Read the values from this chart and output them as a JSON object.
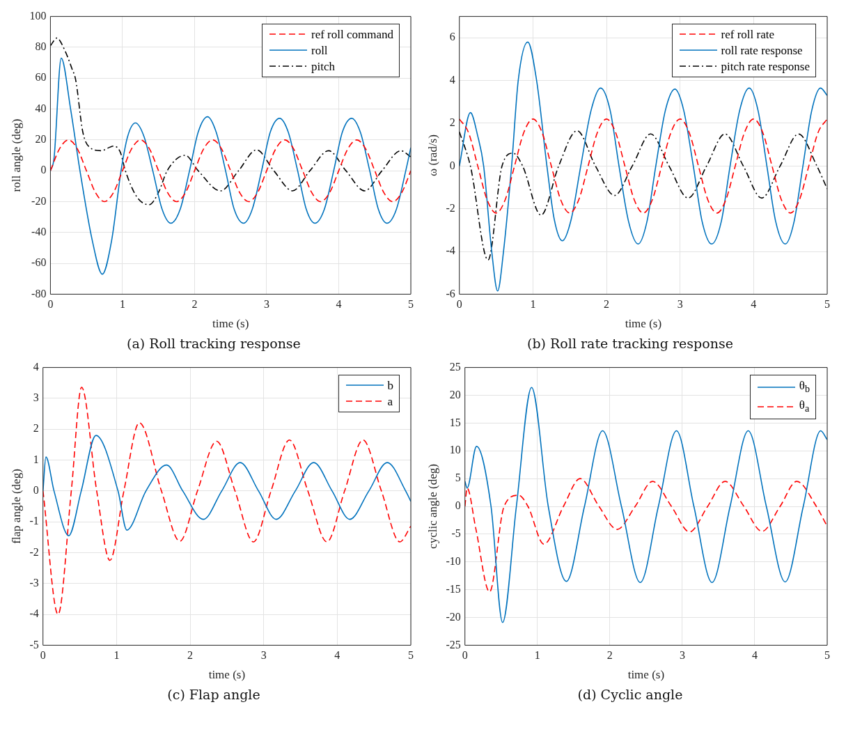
{
  "chart_data": [
    {
      "type": "line",
      "title": "(a) Roll tracking response",
      "xlabel": "time (s)",
      "ylabel": "roll angle (deg)",
      "xlim": [
        0,
        5
      ],
      "xticks": [
        0,
        1,
        2,
        3,
        4,
        5
      ],
      "ylim": [
        -80,
        100
      ],
      "yticks": [
        -80,
        -60,
        -40,
        -20,
        0,
        20,
        40,
        60,
        80,
        100
      ],
      "grid": true,
      "legend": "top right",
      "series": [
        {
          "name": "ref roll command",
          "color": "#ff0000",
          "line_style": "dashed",
          "x": [
            0,
            0.125,
            0.25,
            0.375,
            0.5,
            0.625,
            0.75,
            0.875,
            1,
            1.125,
            1.25,
            1.375,
            1.5,
            1.625,
            1.75,
            1.875,
            2,
            2.125,
            2.25,
            2.375,
            2.5,
            2.625,
            2.75,
            2.875,
            3,
            3.125,
            3.25,
            3.375,
            3.5,
            3.625,
            3.75,
            3.875,
            4,
            4.125,
            4.25,
            4.375,
            4.5,
            4.625,
            4.75,
            4.875,
            5
          ],
          "values": [
            0,
            14.1,
            20,
            14.1,
            0,
            -14.1,
            -20,
            -14.1,
            0,
            14.1,
            20,
            14.1,
            0,
            -14.1,
            -20,
            -14.1,
            0,
            14.1,
            20,
            14.1,
            0,
            -14.1,
            -20,
            -14.1,
            0,
            14.1,
            20,
            14.1,
            0,
            -14.1,
            -20,
            -14.1,
            0,
            14.1,
            20,
            14.1,
            0,
            -14.1,
            -20,
            -14.1,
            0
          ]
        },
        {
          "name": "roll",
          "color": "#0072bd",
          "line_style": "solid",
          "x": [
            0,
            0.05,
            0.15,
            0.28,
            0.41,
            0.58,
            0.72,
            0.85,
            0.98,
            1.07,
            1.18,
            1.3,
            1.42,
            1.55,
            1.67,
            1.8,
            1.93,
            2.05,
            2.18,
            2.3,
            2.43,
            2.55,
            2.68,
            2.8,
            2.93,
            3.05,
            3.18,
            3.3,
            3.43,
            3.55,
            3.67,
            3.8,
            3.93,
            4.05,
            4.18,
            4.3,
            4.43,
            4.55,
            4.67,
            4.8,
            4.93,
            5
          ],
          "values": [
            0,
            8,
            73,
            40,
            0,
            -45,
            -67,
            -45,
            0,
            22,
            31,
            22,
            0,
            -25,
            -34,
            -25,
            0,
            25,
            35,
            25,
            0,
            -25,
            -34,
            -25,
            0,
            25,
            34,
            25,
            0,
            -25,
            -34,
            -25,
            0,
            25,
            34,
            25,
            0,
            -25,
            -34,
            -25,
            0,
            15
          ]
        },
        {
          "name": "pitch",
          "color": "#000000",
          "line_style": "dashdot",
          "x": [
            0,
            0.09,
            0.2,
            0.3,
            0.35,
            0.45,
            0.55,
            0.7,
            0.88,
            0.97,
            1.04,
            1.2,
            1.37,
            1.5,
            1.62,
            1.87,
            2.05,
            2.36,
            2.61,
            2.86,
            3.1,
            3.36,
            3.6,
            3.86,
            4.1,
            4.36,
            4.6,
            4.86,
            5
          ],
          "values": [
            81,
            86,
            78,
            66,
            59,
            25,
            15,
            13,
            16,
            12,
            0,
            -17,
            -22,
            -14,
            0,
            10,
            0,
            -13,
            0,
            13.5,
            0,
            -13,
            0,
            13,
            0,
            -13,
            0,
            13,
            9
          ]
        }
      ]
    },
    {
      "type": "line",
      "title": "(b) Roll rate tracking response",
      "xlabel": "time (s)",
      "ylabel": "ω (rad/s)",
      "xlim": [
        0,
        5
      ],
      "xticks": [
        0,
        1,
        2,
        3,
        4,
        5
      ],
      "ylim": [
        -6,
        7
      ],
      "yticks": [
        -6,
        -4,
        -2,
        0,
        2,
        4,
        6
      ],
      "grid": true,
      "legend": "top right",
      "series": [
        {
          "name": "ref roll rate",
          "color": "#ff0000",
          "line_style": "dashed",
          "x": [
            0,
            0.125,
            0.25,
            0.375,
            0.5,
            0.625,
            0.75,
            0.875,
            1,
            1.125,
            1.25,
            1.375,
            1.5,
            1.625,
            1.75,
            1.875,
            2,
            2.125,
            2.25,
            2.375,
            2.5,
            2.625,
            2.75,
            2.875,
            3,
            3.125,
            3.25,
            3.375,
            3.5,
            3.625,
            3.75,
            3.875,
            4,
            4.125,
            4.25,
            4.375,
            4.5,
            4.625,
            4.75,
            4.875,
            5
          ],
          "values": [
            2.2,
            1.56,
            0,
            -1.56,
            -2.2,
            -1.56,
            0,
            1.56,
            2.2,
            1.56,
            0,
            -1.56,
            -2.2,
            -1.56,
            0,
            1.56,
            2.2,
            1.56,
            0,
            -1.56,
            -2.2,
            -1.56,
            0,
            1.56,
            2.2,
            1.56,
            0,
            -1.56,
            -2.2,
            -1.56,
            0,
            1.56,
            2.2,
            1.56,
            0,
            -1.56,
            -2.2,
            -1.56,
            0,
            1.56,
            2.2
          ]
        },
        {
          "name": "roll rate response",
          "color": "#0072bd",
          "line_style": "solid",
          "x": [
            0,
            0.15,
            0.25,
            0.33,
            0.44,
            0.52,
            0.6,
            0.71,
            0.8,
            0.93,
            1.05,
            1.19,
            1.29,
            1.4,
            1.52,
            1.65,
            1.79,
            1.92,
            2.05,
            2.17,
            2.3,
            2.43,
            2.55,
            2.67,
            2.8,
            2.93,
            3.05,
            3.18,
            3.3,
            3.43,
            3.56,
            3.68,
            3.81,
            3.94,
            4.06,
            4.18,
            4.3,
            4.43,
            4.55,
            4.67,
            4.79,
            4.91,
            5
          ],
          "values": [
            0,
            2.5,
            1.4,
            0,
            -4,
            -5.85,
            -4,
            0,
            4,
            5.8,
            4,
            0,
            -2.5,
            -3.5,
            -2.5,
            0,
            2.6,
            3.65,
            2.6,
            0,
            -2.6,
            -3.65,
            -2.6,
            0,
            2.6,
            3.6,
            2.6,
            0,
            -2.6,
            -3.65,
            -2.6,
            0,
            2.6,
            3.65,
            2.6,
            0,
            -2.6,
            -3.65,
            -2.6,
            0,
            2.6,
            3.65,
            3.3
          ]
        },
        {
          "name": "pitch rate response",
          "color": "#000000",
          "line_style": "dashdot",
          "x": [
            0,
            0.15,
            0.39,
            0.58,
            0.73,
            0.86,
            1.11,
            1.35,
            1.6,
            1.85,
            2.11,
            2.35,
            2.6,
            2.85,
            3.11,
            3.36,
            3.61,
            3.86,
            4.11,
            4.36,
            4.61,
            4.86,
            5
          ],
          "values": [
            1.6,
            0,
            -4.4,
            0,
            0.6,
            0,
            -2.3,
            0,
            1.65,
            0,
            -1.38,
            0,
            1.5,
            0,
            -1.5,
            0,
            1.5,
            0,
            -1.5,
            0,
            1.5,
            0,
            -1.07
          ]
        }
      ]
    },
    {
      "type": "line",
      "title": "(c) Flap angle",
      "xlabel": "time (s)",
      "ylabel": "flap angle (deg)",
      "xlim": [
        0,
        5
      ],
      "xticks": [
        0,
        1,
        2,
        3,
        4,
        5
      ],
      "ylim": [
        -5,
        4
      ],
      "yticks": [
        -5,
        -4,
        -3,
        -2,
        -1,
        0,
        1,
        2,
        3,
        4
      ],
      "grid": true,
      "legend": "top right",
      "series": [
        {
          "name": "b",
          "color": "#0072bd",
          "line_style": "solid",
          "x": [
            0,
            0.04,
            0.15,
            0.35,
            0.52,
            0.72,
            1.02,
            1.14,
            1.4,
            1.68,
            1.9,
            2.18,
            2.43,
            2.68,
            2.93,
            3.17,
            3.43,
            3.68,
            3.93,
            4.17,
            4.43,
            4.68,
            4.93,
            5
          ],
          "values": [
            0,
            1.1,
            0,
            -1.45,
            0,
            1.8,
            0,
            -1.27,
            0,
            0.84,
            0,
            -0.92,
            0,
            0.92,
            0,
            -0.92,
            0,
            0.92,
            0,
            -0.92,
            0,
            0.92,
            0,
            -0.34
          ]
        },
        {
          "name": "a",
          "color": "#ff0000",
          "line_style": "dashed",
          "x": [
            0,
            0.205,
            0.385,
            0.525,
            0.73,
            0.91,
            1.1,
            1.31,
            1.61,
            1.86,
            2.1,
            2.36,
            2.61,
            2.86,
            3.1,
            3.35,
            3.6,
            3.86,
            4.1,
            4.35,
            4.6,
            4.85,
            5
          ],
          "values": [
            0,
            -4,
            0,
            3.36,
            0,
            -2.25,
            0,
            2.21,
            0,
            -1.63,
            0,
            1.61,
            0,
            -1.65,
            0,
            1.65,
            0,
            -1.65,
            0,
            1.65,
            0,
            -1.65,
            -1.14
          ]
        }
      ]
    },
    {
      "type": "line",
      "title": "(d) Cyclic angle",
      "xlabel": "time (s)",
      "ylabel": "cyclic angle (deg)",
      "xlim": [
        0,
        5
      ],
      "xticks": [
        0,
        1,
        2,
        3,
        4,
        5
      ],
      "ylim": [
        -25,
        25
      ],
      "yticks": [
        -25,
        -20,
        -15,
        -10,
        -5,
        0,
        5,
        10,
        15,
        20,
        25
      ],
      "grid": true,
      "legend": "top right",
      "series": [
        {
          "name": "θ$_{b}$",
          "color": "#0072bd",
          "line_style": "solid",
          "x": [
            0,
            0.03,
            0.16,
            0.36,
            0.52,
            0.71,
            0.92,
            1.15,
            1.4,
            1.65,
            1.9,
            2.16,
            2.42,
            2.67,
            2.92,
            3.16,
            3.41,
            3.66,
            3.91,
            4.16,
            4.42,
            4.67,
            4.91,
            5
          ],
          "values": [
            4.5,
            3.3,
            10.8,
            0,
            -20.9,
            0,
            21.4,
            0,
            -13.5,
            0,
            13.6,
            0,
            -13.7,
            0,
            13.6,
            0,
            -13.7,
            0,
            13.6,
            0,
            -13.6,
            0,
            13.6,
            12
          ]
        },
        {
          "name": "θ$_{a}$",
          "color": "#ff0000",
          "line_style": "dashed",
          "x": [
            0,
            0.03,
            0.15,
            0.34,
            0.54,
            0.74,
            0.87,
            1.09,
            1.36,
            1.59,
            1.85,
            2.1,
            2.35,
            2.59,
            2.85,
            3.1,
            3.35,
            3.59,
            3.85,
            4.1,
            4.35,
            4.58,
            4.85,
            5
          ],
          "values": [
            0,
            3.3,
            -4,
            -15.4,
            0,
            2,
            0,
            -6.8,
            0,
            5,
            0,
            -4.15,
            0,
            4.5,
            0,
            -4.6,
            0,
            4.5,
            0,
            -4.5,
            0,
            4.5,
            0,
            -3.6
          ]
        }
      ]
    }
  ]
}
